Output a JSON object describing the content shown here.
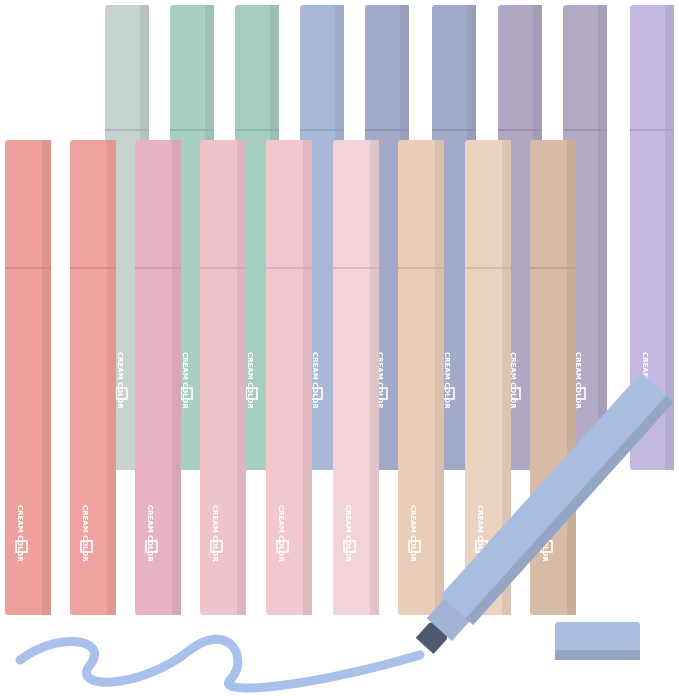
{
  "brand": "CREAM COLOR",
  "back_row_colors": [
    "#c5d3cc",
    "#a9cfc2",
    "#a6cdbf",
    "#a8b9d8",
    "#a3aac9",
    "#a2a9c9",
    "#b1a7c3",
    "#b3a9c5",
    "#c4b8e0"
  ],
  "front_row_colors": [
    "#eea09a",
    "#f0a39e",
    "#e7b3c3",
    "#efc3cc",
    "#f2c7d0",
    "#f2d3d8",
    "#e9cdb9",
    "#ebd3c0",
    "#d8bba6"
  ],
  "open_marker_color": "#a9bde0",
  "ink_color": "#a9c0ec"
}
